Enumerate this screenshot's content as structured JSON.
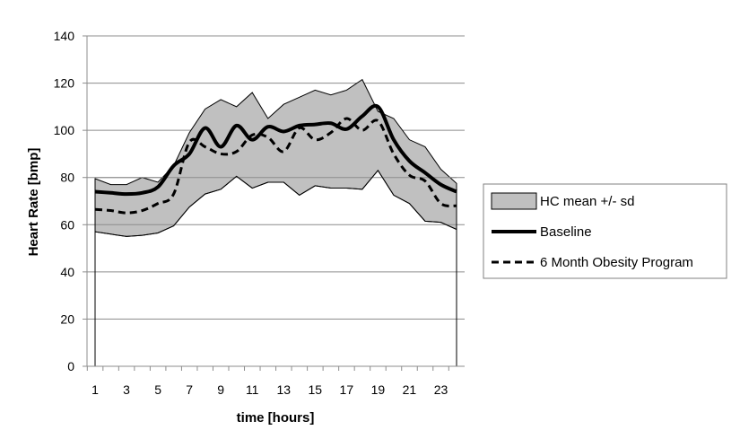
{
  "chart_data": {
    "type": "area",
    "title": "",
    "xlabel": "time [hours]",
    "ylabel": "Heart Rate [bmp]",
    "xlim": [
      1,
      24
    ],
    "ylim": [
      0,
      140
    ],
    "yticks": [
      0,
      20,
      40,
      60,
      80,
      100,
      120,
      140
    ],
    "xticks": [
      1,
      3,
      5,
      7,
      9,
      11,
      13,
      15,
      17,
      19,
      21,
      23
    ],
    "grid": true,
    "legend_position": "right",
    "x": [
      1,
      2,
      3,
      4,
      5,
      6,
      7,
      8,
      9,
      10,
      11,
      12,
      13,
      14,
      15,
      16,
      17,
      18,
      19,
      20,
      21,
      22,
      23,
      24
    ],
    "band": {
      "name": "HC mean +/- sd",
      "color": "#c0c0c0",
      "upper": [
        79.5,
        77,
        77,
        80,
        78,
        85,
        99,
        109,
        113,
        110,
        116,
        105,
        111,
        114,
        117,
        115,
        117,
        121.5,
        108,
        105,
        96,
        93,
        83.5,
        77.5
      ],
      "lower": [
        57,
        56,
        55,
        55.5,
        56.5,
        59.5,
        67.5,
        73,
        75,
        80.5,
        75.5,
        78,
        78,
        72.5,
        76.5,
        75.5,
        75.5,
        75,
        83,
        72.5,
        69,
        61.5,
        61,
        58
      ]
    },
    "series": [
      {
        "name": "Baseline",
        "style": "solid",
        "values": [
          74,
          73.5,
          73,
          73.5,
          76,
          85,
          90,
          101,
          93,
          102,
          96,
          101.5,
          99.5,
          102,
          102.5,
          103,
          100.5,
          106,
          110,
          96,
          87,
          82,
          77,
          74
        ]
      },
      {
        "name": "6 Month Obesity Program",
        "style": "dashed",
        "values": [
          66.5,
          66,
          65,
          66,
          69,
          73,
          95,
          93,
          90,
          91,
          98,
          97,
          91,
          101,
          96,
          99,
          105,
          100,
          104,
          90,
          81,
          78.5,
          69,
          68
        ]
      }
    ],
    "legend": [
      "HC mean +/- sd",
      "Baseline",
      "6 Month Obesity Program"
    ]
  }
}
